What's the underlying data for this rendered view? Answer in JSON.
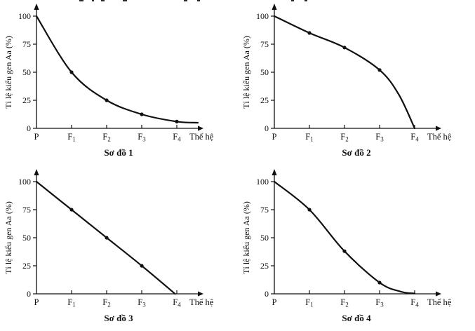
{
  "figure": {
    "background": "#ffffff",
    "ink_color": "#111111"
  },
  "cropped_top_text_fragments": [
    [
      113,
      6
    ],
    [
      131,
      3
    ],
    [
      144,
      5
    ],
    [
      175,
      6
    ],
    [
      262,
      5
    ],
    [
      281,
      4
    ],
    [
      415,
      4
    ],
    [
      434,
      4
    ]
  ],
  "chart_data": [
    {
      "type": "line",
      "title": "Sơ đồ 1",
      "ylabel": "Tỉ lệ kiểu gen Aa (%)",
      "xlabel": "Thế hệ",
      "categories": [
        "P",
        "F1",
        "F2",
        "F3",
        "F4"
      ],
      "values": [
        100,
        50,
        25,
        12.5,
        6
      ],
      "yticks": [
        0,
        25,
        50,
        75,
        100
      ],
      "ylim": [
        0,
        100
      ],
      "markers": [
        [
          1,
          50
        ],
        [
          2,
          25
        ],
        [
          3,
          12.5
        ],
        [
          4,
          6
        ]
      ],
      "curve_samples": [
        [
          0,
          100
        ],
        [
          1,
          50
        ],
        [
          2,
          25
        ],
        [
          3,
          12.5
        ],
        [
          4,
          6
        ],
        [
          4.6,
          5
        ]
      ],
      "grid": false,
      "legend": null
    },
    {
      "type": "line",
      "title": "Sơ đồ 2",
      "ylabel": "Tỉ lệ kiểu gen Aa (%)",
      "xlabel": "Thế hệ",
      "categories": [
        "P",
        "F1",
        "F2",
        "F3",
        "F4"
      ],
      "values": [
        100,
        85,
        72,
        52,
        0
      ],
      "yticks": [
        0,
        25,
        50,
        75,
        100
      ],
      "ylim": [
        0,
        100
      ],
      "markers": [
        [
          1,
          85
        ],
        [
          2,
          72
        ],
        [
          3,
          52
        ]
      ],
      "curve_samples": [
        [
          0,
          100
        ],
        [
          1,
          85
        ],
        [
          2,
          72
        ],
        [
          3,
          52
        ],
        [
          3.55,
          30
        ],
        [
          4,
          0
        ]
      ],
      "grid": false,
      "legend": null
    },
    {
      "type": "line",
      "title": "Sơ đồ 3",
      "ylabel": "Tỉ lệ kiểu gen Aa (%)",
      "xlabel": "Thế hệ",
      "categories": [
        "P",
        "F1",
        "F2",
        "F3",
        "F4"
      ],
      "values": [
        100,
        75,
        50,
        25,
        0
      ],
      "yticks": [
        0,
        25,
        50,
        75,
        100
      ],
      "ylim": [
        0,
        100
      ],
      "markers": [
        [
          1,
          75
        ],
        [
          2,
          50
        ],
        [
          3,
          25
        ]
      ],
      "curve_samples": [
        [
          0,
          100
        ],
        [
          1,
          75
        ],
        [
          2,
          50
        ],
        [
          3,
          25
        ],
        [
          3.95,
          0
        ]
      ],
      "grid": false,
      "legend": null
    },
    {
      "type": "line",
      "title": "Sơ đồ 4",
      "ylabel": "Tỉ lệ kiểu gen Aa (%)",
      "xlabel": "Thế hệ",
      "categories": [
        "P",
        "F1",
        "F2",
        "F3",
        "F4"
      ],
      "values": [
        100,
        75,
        38,
        10,
        0
      ],
      "yticks": [
        0,
        25,
        50,
        75,
        100
      ],
      "ylim": [
        0,
        100
      ],
      "markers": [
        [
          1,
          75
        ],
        [
          2,
          38
        ],
        [
          3,
          10
        ]
      ],
      "curve_samples": [
        [
          0,
          100
        ],
        [
          1,
          75
        ],
        [
          2,
          38
        ],
        [
          3,
          10
        ],
        [
          3.6,
          2
        ],
        [
          4,
          0.3
        ]
      ],
      "grid": false,
      "legend": null
    }
  ]
}
